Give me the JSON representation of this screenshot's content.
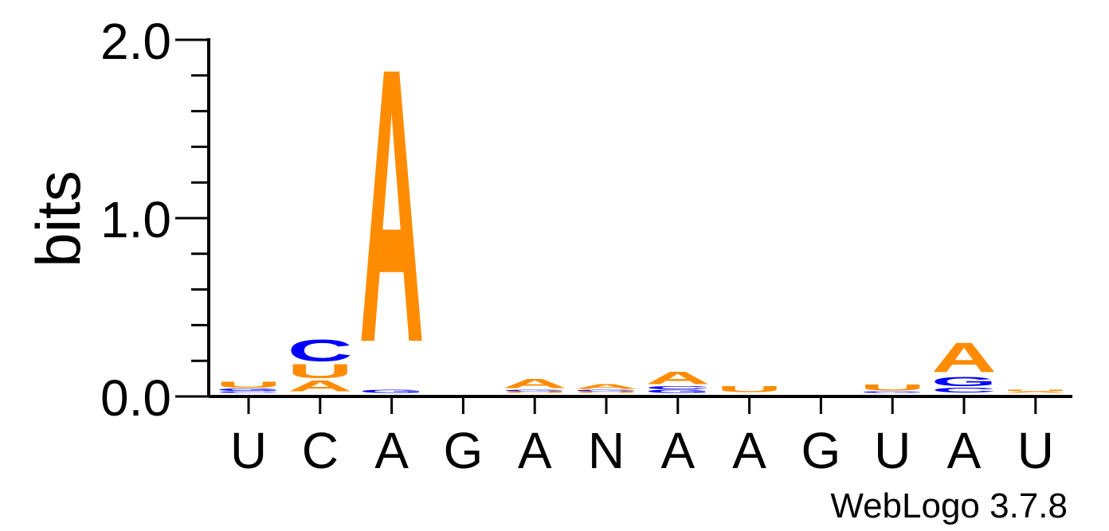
{
  "chart_data": {
    "type": "sequence-logo",
    "ylabel": "bits",
    "ylim": [
      0,
      2.0
    ],
    "yticks": [
      "0.0",
      "1.0",
      "2.0"
    ],
    "positions": [
      "U",
      "C",
      "A",
      "G",
      "A",
      "N",
      "A",
      "A",
      "G",
      "U",
      "A",
      "U"
    ],
    "colors": {
      "A": "#ff8c00",
      "U": "#ff8c00",
      "C": "#0000ff",
      "G": "#0000ff"
    },
    "stacks": [
      [
        {
          "letter": "C",
          "height": 0.01
        },
        {
          "letter": "G",
          "height": 0.015
        },
        {
          "letter": "U",
          "height": 0.04
        }
      ],
      [
        {
          "letter": "A",
          "height": 0.07
        },
        {
          "letter": "U",
          "height": 0.09
        },
        {
          "letter": "C",
          "height": 0.14
        }
      ],
      [
        {
          "letter": "G",
          "height": 0.02
        },
        {
          "letter": "A",
          "height": 1.77
        }
      ],
      [],
      [
        {
          "letter": "U",
          "height": 0.01
        },
        {
          "letter": "G",
          "height": 0.01
        },
        {
          "letter": "A",
          "height": 0.06
        }
      ],
      [
        {
          "letter": "U",
          "height": 0.01
        },
        {
          "letter": "G",
          "height": 0.01
        },
        {
          "letter": "A",
          "height": 0.03
        }
      ],
      [
        {
          "letter": "G",
          "height": 0.02
        },
        {
          "letter": "C",
          "height": 0.02
        },
        {
          "letter": "A",
          "height": 0.08
        }
      ],
      [
        {
          "letter": "U",
          "height": 0.04
        }
      ],
      [],
      [
        {
          "letter": "G",
          "height": 0.01
        },
        {
          "letter": "U",
          "height": 0.04
        }
      ],
      [
        {
          "letter": "C",
          "height": 0.03
        },
        {
          "letter": "G",
          "height": 0.06
        },
        {
          "letter": "A",
          "height": 0.19
        }
      ],
      [
        {
          "letter": "A",
          "height": 0.01
        },
        {
          "letter": "U",
          "height": 0.01
        }
      ]
    ],
    "credit": "WebLogo 3.7.8"
  }
}
